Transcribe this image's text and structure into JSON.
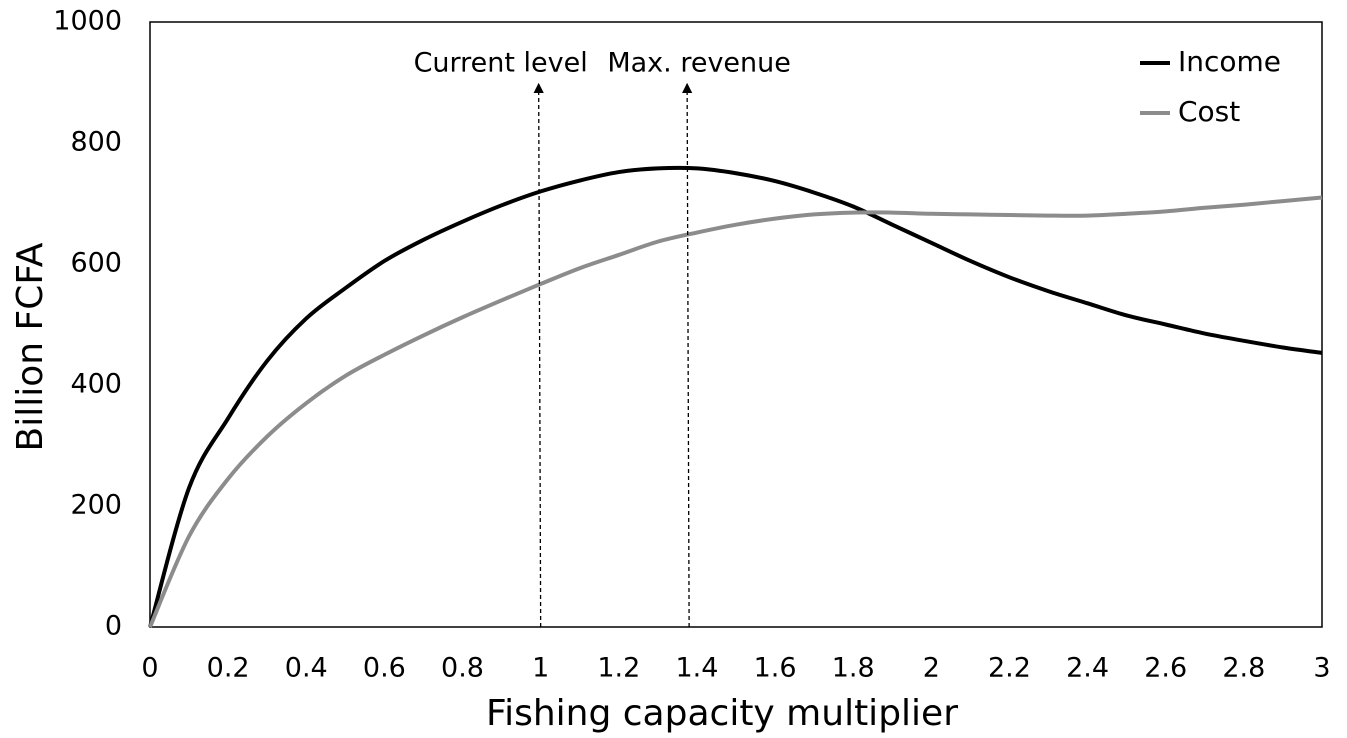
{
  "chart_data": {
    "type": "line",
    "x_label": "Fishing capacity multiplier",
    "y_label": "Billion FCFA",
    "x": [
      0,
      0.1,
      0.2,
      0.3,
      0.4,
      0.5,
      0.6,
      0.7,
      0.8,
      0.9,
      1,
      1.1,
      1.2,
      1.3,
      1.4,
      1.5,
      1.6,
      1.7,
      1.8,
      1.9,
      2,
      2.1,
      2.2,
      2.3,
      2.4,
      2.5,
      2.6,
      2.7,
      2.8,
      2.9,
      3
    ],
    "series": [
      {
        "name": "Income",
        "color": "#000000",
        "values": [
          0,
          230,
          345,
          440,
          510,
          560,
          605,
          640,
          670,
          697,
          720,
          738,
          752,
          758,
          758,
          750,
          737,
          718,
          695,
          665,
          635,
          605,
          578,
          555,
          535,
          515,
          500,
          485,
          473,
          462,
          453
        ]
      },
      {
        "name": "Cost",
        "color": "#8c8c8c",
        "values": [
          0,
          150,
          245,
          315,
          370,
          415,
          450,
          482,
          512,
          540,
          567,
          593,
          615,
          637,
          652,
          665,
          675,
          682,
          685,
          685,
          683,
          682,
          681,
          680,
          680,
          683,
          687,
          693,
          698,
          704,
          710
        ]
      }
    ],
    "annotations": [
      {
        "text": "Current level",
        "x": 1
      },
      {
        "text": "Max. revenue",
        "x": 1.38
      }
    ],
    "xlim": [
      0,
      3
    ],
    "ylim": [
      0,
      1000
    ],
    "xticks": [
      0,
      0.2,
      0.4,
      0.6,
      0.8,
      1,
      1.2,
      1.4,
      1.6,
      1.8,
      2,
      2.2,
      2.4,
      2.6,
      2.8,
      3
    ],
    "yticks": [
      0,
      200,
      400,
      600,
      800,
      1000
    ],
    "grid": false,
    "legend": "top-right"
  }
}
